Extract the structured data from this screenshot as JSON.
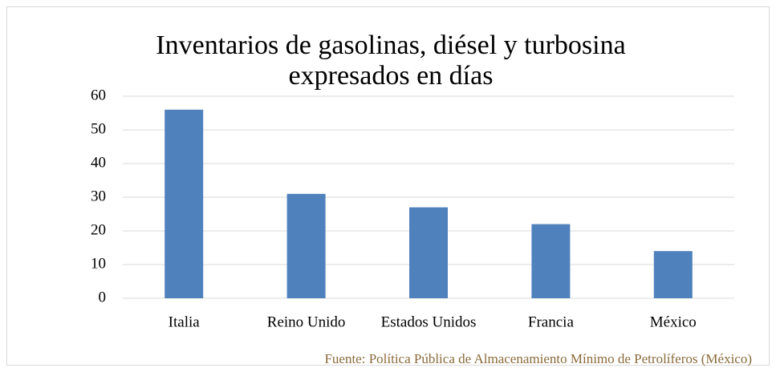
{
  "chart_data": {
    "type": "bar",
    "title": "Inventarios de gasolinas, diésel y turbosina expresados en días",
    "categories": [
      "Italia",
      "Reino Unido",
      "Estados Unidos",
      "Francia",
      "México"
    ],
    "values": [
      56,
      31,
      27,
      22,
      14
    ],
    "color": "#4f81bd",
    "ylim": [
      0,
      60
    ],
    "yticks": [
      0,
      10,
      20,
      30,
      40,
      50,
      60
    ],
    "grid": true,
    "source": "Fuente: Política Pública de Almacenamiento Mínimo de Petrolíferos (México)"
  }
}
